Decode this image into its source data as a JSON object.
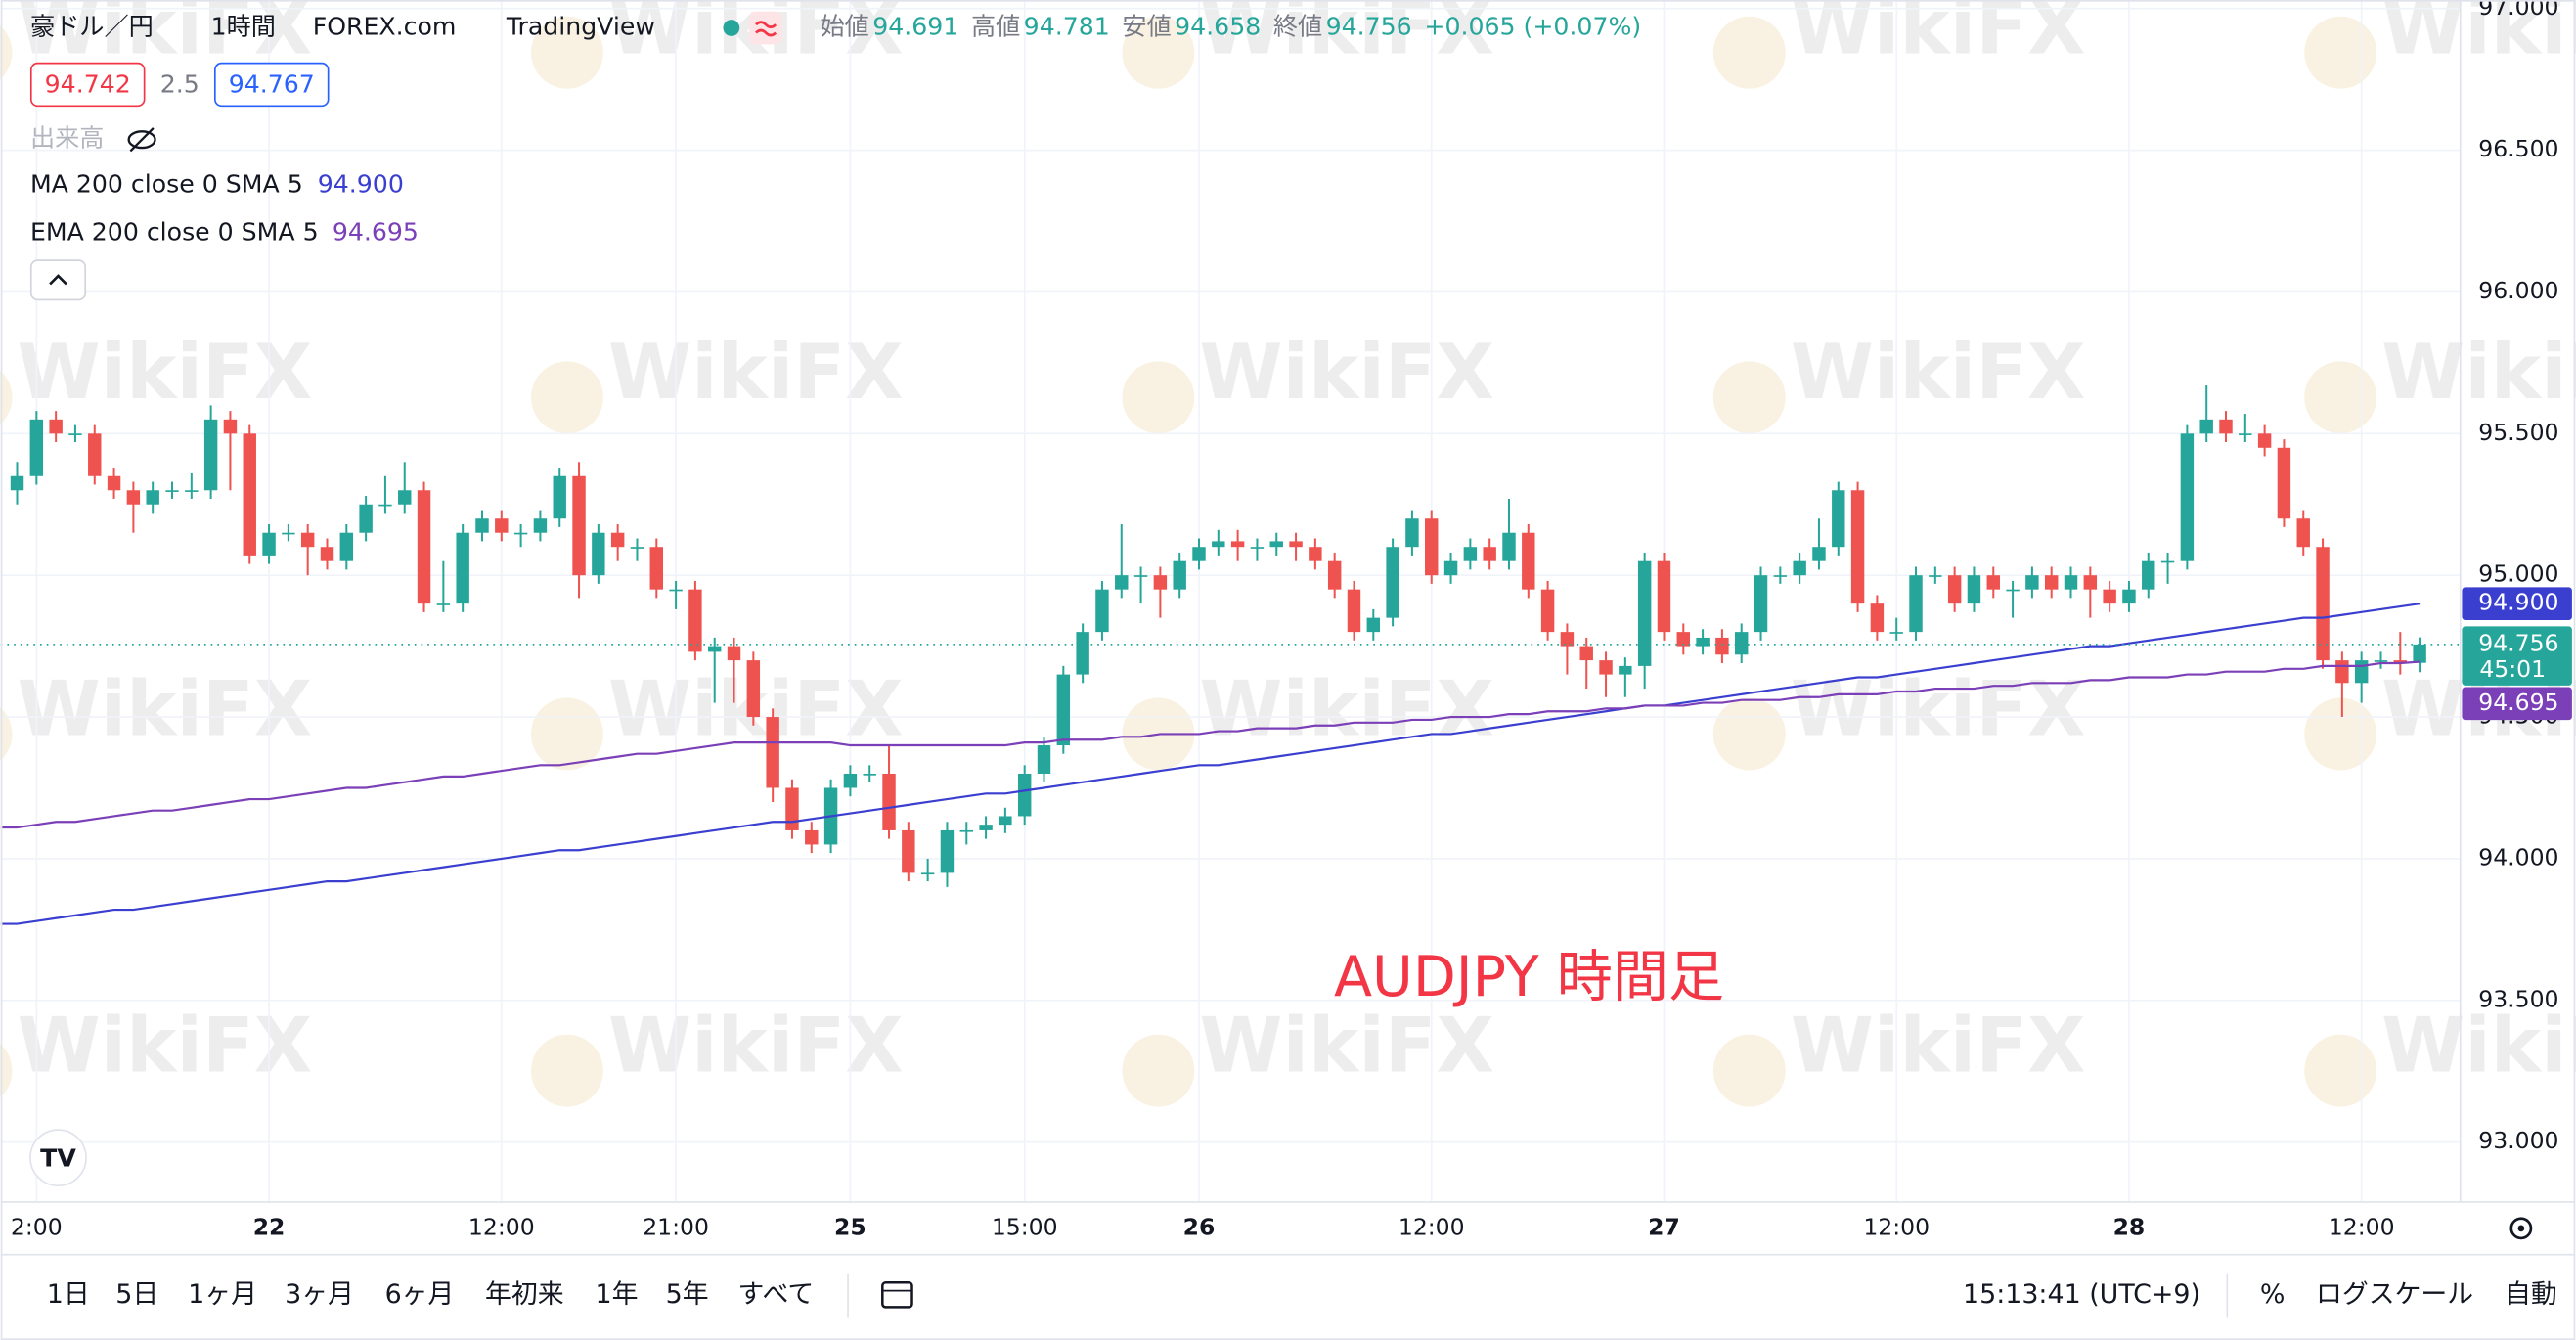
{
  "ui": {
    "symbol": "豪ドル／円",
    "interval": "1時間",
    "source": "FOREX.com",
    "platform": "TradingView",
    "open_label": "始値",
    "high_label": "高値",
    "low_label": "安値",
    "close_label": "終値",
    "change": "+0.065 (+0.07%)",
    "bid": "94.742",
    "spread": "2.5",
    "ask": "94.767",
    "volume": "出来高",
    "watermark": "WikiFX",
    "ranges": [
      "1日",
      "5日",
      "1ヶ月",
      "3ヶ月",
      "6ヶ月",
      "年初来",
      "1年",
      "5年",
      "すべて"
    ],
    "clock": "15:13:41 (UTC+9)",
    "percent": "%",
    "log_scale": "ログスケール",
    "auto": "自動"
  },
  "chart_data": {
    "type": "candlestick",
    "annotation": "AUDJPY 時間足",
    "up_color": "#26a69a",
    "down_color": "#ef5350",
    "categories": [
      null,
      "2:00",
      null,
      null,
      null,
      null,
      null,
      null,
      null,
      null,
      null,
      null,
      null,
      "22",
      null,
      null,
      null,
      null,
      null,
      null,
      null,
      null,
      null,
      null,
      null,
      "12:00",
      null,
      null,
      null,
      null,
      null,
      null,
      null,
      null,
      "21:00",
      null,
      null,
      null,
      null,
      null,
      null,
      null,
      null,
      "25",
      null,
      null,
      null,
      null,
      null,
      null,
      null,
      null,
      "15:00",
      null,
      null,
      null,
      null,
      null,
      null,
      null,
      null,
      "26",
      null,
      null,
      null,
      null,
      null,
      null,
      null,
      null,
      null,
      null,
      null,
      "12:00",
      null,
      null,
      null,
      null,
      null,
      null,
      null,
      null,
      null,
      null,
      null,
      "27",
      null,
      null,
      null,
      null,
      null,
      null,
      null,
      null,
      null,
      null,
      null,
      "12:00",
      null,
      null,
      null,
      null,
      null,
      null,
      null,
      null,
      null,
      null,
      null,
      "28",
      null,
      null,
      null,
      null,
      null,
      null,
      null,
      null,
      null,
      null,
      null,
      "12:00",
      null,
      null,
      null
    ],
    "open": [
      95.3,
      95.35,
      95.55,
      95.5,
      95.5,
      95.35,
      95.3,
      95.25,
      95.3,
      95.3,
      95.3,
      95.55,
      95.5,
      95.07,
      95.15,
      95.15,
      95.1,
      95.05,
      95.15,
      95.25,
      95.25,
      95.3,
      94.9,
      94.9,
      95.15,
      95.2,
      95.15,
      95.15,
      95.2,
      95.35,
      95.0,
      95.15,
      95.1,
      95.1,
      94.95,
      94.95,
      94.73,
      94.75,
      94.7,
      94.5,
      94.25,
      94.1,
      94.05,
      94.25,
      94.3,
      94.3,
      94.1,
      93.95,
      93.95,
      94.1,
      94.1,
      94.12,
      94.15,
      94.3,
      94.4,
      94.65,
      94.8,
      94.95,
      95.0,
      95.0,
      94.95,
      95.05,
      95.1,
      95.12,
      95.1,
      95.1,
      95.12,
      95.1,
      95.05,
      94.95,
      94.8,
      94.85,
      95.1,
      95.2,
      95.0,
      95.05,
      95.1,
      95.05,
      95.15,
      94.95,
      94.8,
      94.75,
      94.7,
      94.65,
      94.68,
      95.05,
      94.8,
      94.75,
      94.78,
      94.72,
      94.8,
      95.0,
      95.0,
      95.05,
      95.1,
      95.3,
      94.9,
      94.8,
      94.8,
      95.0,
      95.0,
      94.9,
      95.0,
      94.95,
      94.95,
      95.0,
      94.95,
      95.0,
      94.95,
      94.9,
      94.95,
      95.05,
      95.05,
      95.5,
      95.55,
      95.5,
      95.5,
      95.45,
      95.2,
      95.1,
      94.7,
      94.62,
      94.7,
      94.7,
      94.691
    ],
    "high": [
      95.4,
      95.58,
      95.58,
      95.53,
      95.53,
      95.38,
      95.33,
      95.33,
      95.33,
      95.36,
      95.6,
      95.58,
      95.53,
      95.18,
      95.18,
      95.18,
      95.13,
      95.18,
      95.28,
      95.35,
      95.4,
      95.33,
      95.05,
      95.18,
      95.23,
      95.23,
      95.18,
      95.23,
      95.38,
      95.4,
      95.18,
      95.18,
      95.13,
      95.13,
      94.98,
      94.98,
      94.78,
      94.78,
      94.73,
      94.53,
      94.28,
      94.13,
      94.28,
      94.33,
      94.33,
      94.4,
      94.13,
      94.0,
      94.13,
      94.13,
      94.15,
      94.18,
      94.33,
      94.43,
      94.68,
      94.83,
      94.98,
      95.18,
      95.03,
      95.03,
      95.08,
      95.13,
      95.16,
      95.16,
      95.13,
      95.15,
      95.15,
      95.13,
      95.08,
      94.98,
      94.88,
      95.13,
      95.23,
      95.23,
      95.08,
      95.13,
      95.13,
      95.27,
      95.18,
      94.98,
      94.83,
      94.78,
      94.73,
      94.71,
      95.08,
      95.08,
      94.83,
      94.81,
      94.81,
      94.83,
      95.03,
      95.03,
      95.08,
      95.2,
      95.33,
      95.33,
      94.93,
      94.85,
      95.03,
      95.03,
      95.03,
      95.03,
      95.03,
      94.98,
      95.03,
      95.03,
      95.03,
      95.03,
      94.98,
      94.98,
      95.08,
      95.08,
      95.53,
      95.67,
      95.58,
      95.57,
      95.53,
      95.48,
      95.23,
      95.13,
      94.73,
      94.73,
      94.73,
      94.8,
      94.781
    ],
    "low": [
      95.25,
      95.32,
      95.47,
      95.47,
      95.32,
      95.27,
      95.15,
      95.22,
      95.27,
      95.27,
      95.27,
      95.3,
      95.04,
      95.04,
      95.12,
      95.0,
      95.02,
      95.02,
      95.12,
      95.22,
      95.22,
      94.87,
      94.87,
      94.87,
      95.12,
      95.12,
      95.1,
      95.12,
      95.17,
      94.92,
      94.97,
      95.05,
      95.05,
      94.92,
      94.88,
      94.7,
      94.55,
      94.55,
      94.47,
      94.2,
      94.07,
      94.02,
      94.02,
      94.22,
      94.27,
      94.07,
      93.92,
      93.92,
      93.9,
      94.05,
      94.07,
      94.09,
      94.12,
      94.27,
      94.37,
      94.62,
      94.77,
      94.92,
      94.9,
      94.85,
      94.92,
      95.02,
      95.07,
      95.05,
      95.05,
      95.07,
      95.05,
      95.02,
      94.92,
      94.77,
      94.77,
      94.82,
      95.07,
      94.97,
      94.97,
      95.02,
      95.02,
      95.02,
      94.92,
      94.77,
      94.65,
      94.6,
      94.57,
      94.57,
      94.6,
      94.77,
      94.72,
      94.72,
      94.69,
      94.69,
      94.77,
      94.97,
      94.97,
      95.02,
      95.07,
      94.87,
      94.77,
      94.77,
      94.77,
      94.97,
      94.87,
      94.87,
      94.92,
      94.85,
      94.92,
      94.92,
      94.92,
      94.85,
      94.87,
      94.87,
      94.92,
      94.97,
      95.02,
      95.47,
      95.47,
      95.47,
      95.42,
      95.17,
      95.07,
      94.67,
      94.5,
      94.55,
      94.67,
      94.65,
      94.658
    ],
    "close": [
      95.35,
      95.55,
      95.5,
      95.5,
      95.35,
      95.3,
      95.25,
      95.3,
      95.3,
      95.3,
      95.55,
      95.5,
      95.07,
      95.15,
      95.15,
      95.1,
      95.05,
      95.15,
      95.25,
      95.25,
      95.3,
      94.9,
      94.9,
      95.15,
      95.2,
      95.15,
      95.15,
      95.2,
      95.35,
      95.0,
      95.15,
      95.1,
      95.1,
      94.95,
      94.95,
      94.73,
      94.75,
      94.7,
      94.5,
      94.25,
      94.1,
      94.05,
      94.25,
      94.3,
      94.3,
      94.1,
      93.95,
      93.95,
      94.1,
      94.1,
      94.12,
      94.15,
      94.3,
      94.4,
      94.65,
      94.8,
      94.95,
      95.0,
      95.0,
      94.95,
      95.05,
      95.1,
      95.12,
      95.1,
      95.1,
      95.12,
      95.1,
      95.05,
      94.95,
      94.8,
      94.85,
      95.1,
      95.2,
      95.0,
      95.05,
      95.1,
      95.05,
      95.15,
      94.95,
      94.8,
      94.75,
      94.7,
      94.65,
      94.68,
      95.05,
      94.8,
      94.75,
      94.78,
      94.72,
      94.8,
      95.0,
      95.0,
      95.05,
      95.1,
      95.3,
      94.9,
      94.8,
      94.8,
      95.0,
      95.0,
      94.9,
      95.0,
      94.95,
      94.95,
      95.0,
      94.95,
      95.0,
      94.95,
      94.9,
      94.95,
      95.05,
      95.05,
      95.5,
      95.55,
      95.5,
      95.5,
      95.45,
      95.2,
      95.1,
      94.7,
      94.62,
      94.7,
      94.7,
      94.691,
      94.756
    ],
    "countdown": "45:01",
    "series": [
      {
        "name": "MA 200 close 0 SMA 5",
        "color": "#3a3fd0",
        "last_label": "94.900",
        "values": [
          93.77,
          93.78,
          93.79,
          93.8,
          93.81,
          93.82,
          93.82,
          93.83,
          93.84,
          93.85,
          93.86,
          93.87,
          93.88,
          93.89,
          93.9,
          93.91,
          93.92,
          93.92,
          93.93,
          93.94,
          93.95,
          93.96,
          93.97,
          93.98,
          93.99,
          94.0,
          94.01,
          94.02,
          94.03,
          94.03,
          94.04,
          94.05,
          94.06,
          94.07,
          94.08,
          94.09,
          94.1,
          94.11,
          94.12,
          94.13,
          94.13,
          94.14,
          94.15,
          94.16,
          94.17,
          94.18,
          94.19,
          94.2,
          94.21,
          94.22,
          94.23,
          94.23,
          94.24,
          94.25,
          94.26,
          94.27,
          94.28,
          94.29,
          94.3,
          94.31,
          94.32,
          94.33,
          94.33,
          94.34,
          94.35,
          94.36,
          94.37,
          94.38,
          94.39,
          94.4,
          94.41,
          94.42,
          94.43,
          94.44,
          94.44,
          94.45,
          94.46,
          94.47,
          94.48,
          94.49,
          94.5,
          94.51,
          94.52,
          94.53,
          94.54,
          94.54,
          94.55,
          94.56,
          94.57,
          94.58,
          94.59,
          94.6,
          94.61,
          94.62,
          94.63,
          94.64,
          94.64,
          94.65,
          94.66,
          94.67,
          94.68,
          94.69,
          94.7,
          94.71,
          94.72,
          94.73,
          94.74,
          94.75,
          94.75,
          94.76,
          94.77,
          94.78,
          94.79,
          94.8,
          94.81,
          94.82,
          94.83,
          94.84,
          94.85,
          94.85,
          94.86,
          94.87,
          94.88,
          94.89,
          94.9
        ]
      },
      {
        "name": "EMA 200 close 0 SMA 5",
        "color": "#7b3fb8",
        "values": [
          94.11,
          94.12,
          94.13,
          94.13,
          94.14,
          94.15,
          94.16,
          94.17,
          94.17,
          94.18,
          94.19,
          94.2,
          94.21,
          94.21,
          94.22,
          94.23,
          94.24,
          94.25,
          94.25,
          94.26,
          94.27,
          94.28,
          94.29,
          94.29,
          94.3,
          94.31,
          94.32,
          94.33,
          94.33,
          94.34,
          94.35,
          94.36,
          94.37,
          94.37,
          94.38,
          94.39,
          94.4,
          94.41,
          94.41,
          94.41,
          94.41,
          94.41,
          94.41,
          94.4,
          94.4,
          94.4,
          94.4,
          94.4,
          94.4,
          94.4,
          94.4,
          94.4,
          94.41,
          94.41,
          94.42,
          94.42,
          94.42,
          94.43,
          94.43,
          94.44,
          94.44,
          94.44,
          94.45,
          94.45,
          94.46,
          94.46,
          94.46,
          94.47,
          94.47,
          94.48,
          94.48,
          94.48,
          94.49,
          94.49,
          94.5,
          94.5,
          94.5,
          94.51,
          94.51,
          94.52,
          94.52,
          94.52,
          94.53,
          94.53,
          94.54,
          94.54,
          94.54,
          94.55,
          94.55,
          94.56,
          94.56,
          94.56,
          94.57,
          94.57,
          94.58,
          94.58,
          94.58,
          94.59,
          94.59,
          94.6,
          94.6,
          94.6,
          94.61,
          94.61,
          94.62,
          94.62,
          94.62,
          94.63,
          94.63,
          94.64,
          94.64,
          94.64,
          94.65,
          94.65,
          94.66,
          94.66,
          94.66,
          94.67,
          94.67,
          94.68,
          94.68,
          94.68,
          94.69,
          94.69,
          94.695
        ]
      }
    ],
    "ylim": [
      92.8,
      97.03
    ],
    "yticks": [
      {
        "value": 93,
        "label": "93.000"
      },
      {
        "value": 93.5,
        "label": "93.500"
      },
      {
        "value": 94,
        "label": "94.000"
      },
      {
        "value": 94.5,
        "label": "94.500"
      },
      {
        "value": 95,
        "label": "95.000"
      },
      {
        "value": 95.5,
        "label": "95.500"
      },
      {
        "value": 96,
        "label": "96.000"
      },
      {
        "value": 96.5,
        "label": "96.500"
      },
      {
        "value": 97,
        "label": "97.000"
      }
    ],
    "grid": true
  }
}
